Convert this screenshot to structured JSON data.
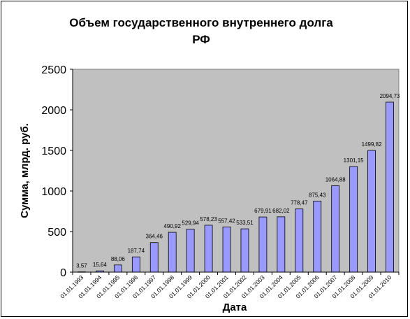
{
  "chart_data": {
    "type": "bar",
    "title_line1": "Объем государственного внутреннего долга",
    "title_line2": "РФ",
    "xlabel": "Дата",
    "ylabel": "Сумма, млрд. руб.",
    "ylim": [
      0,
      2500
    ],
    "yticks": [
      0,
      500,
      1000,
      1500,
      2000,
      2500
    ],
    "grid": false,
    "legend": "none",
    "categories": [
      "01.01.1993",
      "01.01.1994",
      "01.01.1995",
      "01.01.1996",
      "01.01.1997",
      "01.01.1998",
      "01.01.1999",
      "01.01.2000",
      "01.01.2001",
      "01.01.2002",
      "01.01.2003",
      "01.01.2004",
      "01.01.2005",
      "01.01.2006",
      "01.01.2007",
      "01.01.2008",
      "01.01.2009",
      "01.01.2010"
    ],
    "values": [
      3.57,
      15.64,
      88.06,
      187.74,
      364.46,
      490.92,
      529.94,
      578.23,
      557.42,
      533.51,
      679.91,
      682.02,
      778.47,
      875.43,
      1064.88,
      1301.15,
      1499.82,
      2094.73
    ],
    "value_labels": [
      "3,57",
      "15,64",
      "88,06",
      "187,74",
      "364,46",
      "490,92",
      "529,94",
      "578,23",
      "557,42",
      "533,51",
      "679,91",
      "682,02",
      "778,47",
      "875,43",
      "1064,88",
      "1301,15",
      "1499,82",
      "2094,73"
    ],
    "colors": {
      "plot_bg": "#c0c0c0",
      "bar_fill": "#9999ff",
      "bar_stroke": "#000000"
    }
  }
}
